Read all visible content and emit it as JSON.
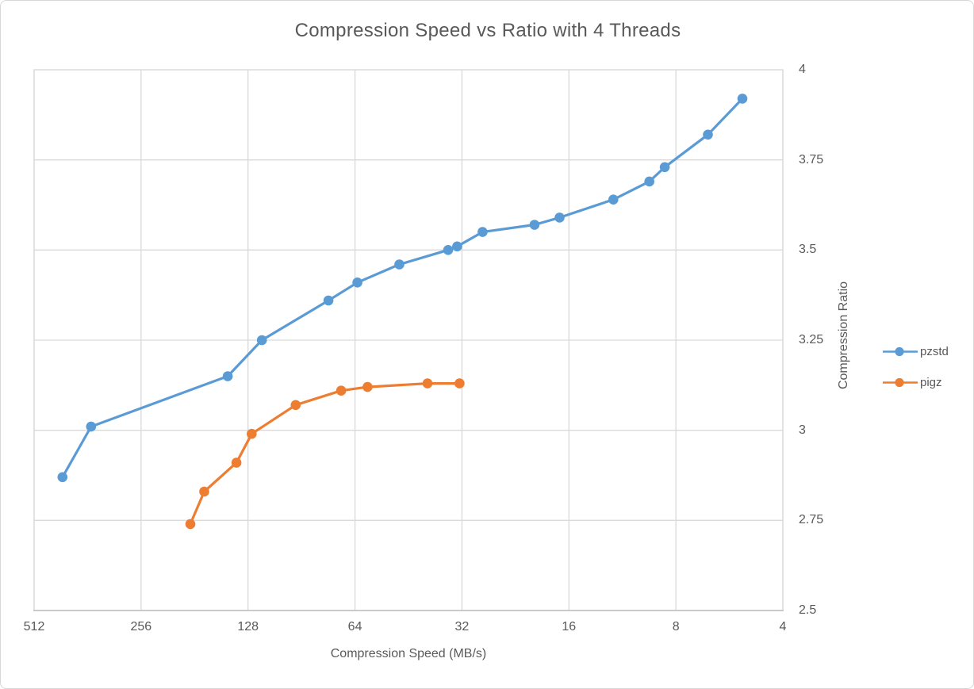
{
  "figure": {
    "title": "Compression Speed vs Ratio with 4 Threads"
  },
  "colors": {
    "pzstd": "#5B9BD5",
    "pigz": "#ED7D31",
    "gridline": "#D9D9D9",
    "axis_line": "#BFBFBF",
    "text": "#595959"
  },
  "chart_data": {
    "type": "line",
    "title": "Compression Speed vs Ratio with 4 Threads",
    "xlabel": "Compression Speed (MB/s)",
    "ylabel": "Compression Ratio",
    "x_scale": "log2_reversed",
    "xlim": [
      512,
      4
    ],
    "ylim": [
      2.5,
      4
    ],
    "x_ticks": [
      512,
      256,
      128,
      64,
      32,
      16,
      8,
      4
    ],
    "y_ticks": [
      4,
      3.75,
      3.5,
      3.25,
      3,
      2.75,
      2.5
    ],
    "grid": true,
    "legend_position": "right",
    "series": [
      {
        "name": "pzstd",
        "color": "#5B9BD5",
        "points": [
          [
            426,
            2.87
          ],
          [
            354,
            3.01
          ],
          [
            146,
            3.15
          ],
          [
            117,
            3.25
          ],
          [
            76,
            3.36
          ],
          [
            63,
            3.41
          ],
          [
            48,
            3.46
          ],
          [
            35,
            3.5
          ],
          [
            33,
            3.51
          ],
          [
            28,
            3.55
          ],
          [
            20,
            3.57
          ],
          [
            17,
            3.59
          ],
          [
            12,
            3.64
          ],
          [
            9.5,
            3.69
          ],
          [
            8.6,
            3.73
          ],
          [
            6.5,
            3.82
          ],
          [
            5.2,
            3.92
          ]
        ]
      },
      {
        "name": "pigz",
        "color": "#ED7D31",
        "points": [
          [
            186,
            2.74
          ],
          [
            170,
            2.83
          ],
          [
            138,
            2.91
          ],
          [
            125,
            2.99
          ],
          [
            94,
            3.07
          ],
          [
            70,
            3.11
          ],
          [
            59,
            3.12
          ],
          [
            40,
            3.13
          ],
          [
            32.5,
            3.13
          ]
        ]
      }
    ]
  }
}
